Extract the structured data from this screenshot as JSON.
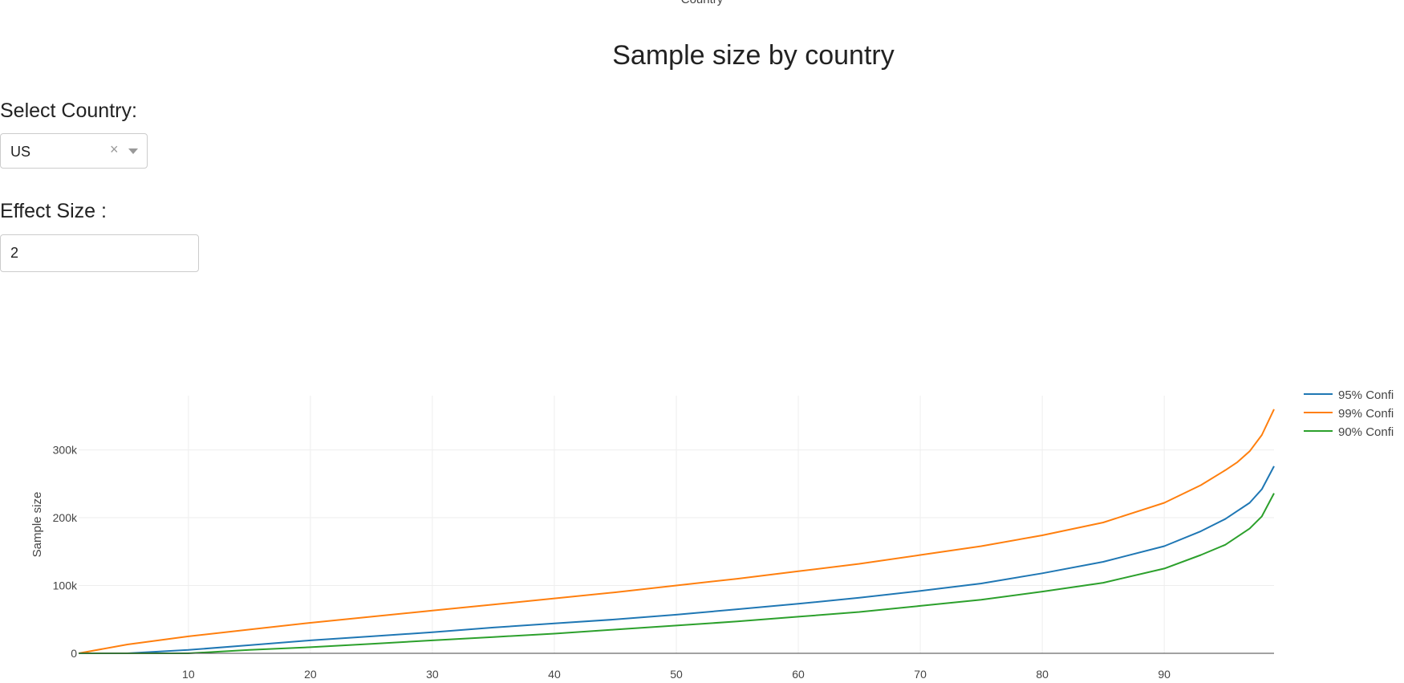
{
  "top_label": "Country",
  "title": "Sample size by country",
  "country_select": {
    "label": "Select Country:",
    "value": "US",
    "clear_glyph": "×"
  },
  "effect_size": {
    "label": "Effect Size :",
    "value": "2"
  },
  "colors": {
    "series_95": "#1f77b4",
    "series_99": "#ff7f0e",
    "series_90": "#2ca02c",
    "grid": "#eeeeee",
    "axis": "#444444"
  },
  "chart_data": {
    "type": "line",
    "xlabel": "",
    "ylabel": "Sample size",
    "xlim": [
      1,
      99
    ],
    "ylim": [
      0,
      380000
    ],
    "x_ticks": [
      10,
      20,
      30,
      40,
      50,
      60,
      70,
      80,
      90
    ],
    "x_tick_labels": [
      "10",
      "20",
      "30",
      "40",
      "50",
      "60",
      "70",
      "80",
      "90"
    ],
    "y_ticks": [
      0,
      100000,
      200000,
      300000
    ],
    "y_tick_labels": [
      "0",
      "100k",
      "200k",
      "300k"
    ],
    "grid": true,
    "legend_position": "top-right",
    "x": [
      1,
      5,
      10,
      15,
      20,
      25,
      30,
      35,
      40,
      45,
      50,
      55,
      60,
      65,
      70,
      75,
      80,
      85,
      90,
      93,
      95,
      96,
      97,
      98,
      99
    ],
    "series": [
      {
        "name": "95% Confi",
        "color": "#1f77b4",
        "values": [
          0,
          0,
          5000,
          12000,
          19000,
          25000,
          31000,
          38000,
          44000,
          50000,
          57000,
          65000,
          73000,
          82000,
          92000,
          103000,
          118000,
          135000,
          158000,
          180000,
          198000,
          210000,
          222000,
          242000,
          276000
        ]
      },
      {
        "name": "99% Confi",
        "color": "#ff7f0e",
        "values": [
          0,
          13000,
          25000,
          35000,
          45000,
          54000,
          63000,
          72000,
          81000,
          90000,
          100000,
          110000,
          121000,
          132000,
          145000,
          158000,
          174000,
          193000,
          222000,
          248000,
          270000,
          282000,
          298000,
          322000,
          360000
        ]
      },
      {
        "name": "90% Confi",
        "color": "#2ca02c",
        "values": [
          0,
          0,
          0,
          5000,
          9000,
          14000,
          19000,
          24000,
          29000,
          35000,
          41000,
          47000,
          54000,
          61000,
          70000,
          79000,
          91000,
          104000,
          125000,
          145000,
          160000,
          172000,
          184000,
          202000,
          236000
        ]
      }
    ]
  }
}
